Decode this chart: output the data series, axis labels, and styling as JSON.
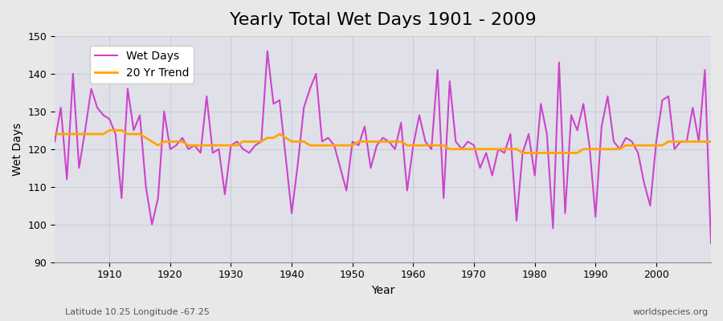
{
  "title": "Yearly Total Wet Days 1901 - 2009",
  "xlabel": "Year",
  "ylabel": "Wet Days",
  "subtitle": "Latitude 10.25 Longitude -67.25",
  "watermark": "worldspecies.org",
  "years": [
    1901,
    1902,
    1903,
    1904,
    1905,
    1906,
    1907,
    1908,
    1909,
    1910,
    1911,
    1912,
    1913,
    1914,
    1915,
    1916,
    1917,
    1918,
    1919,
    1920,
    1921,
    1922,
    1923,
    1924,
    1925,
    1926,
    1927,
    1928,
    1929,
    1930,
    1931,
    1932,
    1933,
    1934,
    1935,
    1936,
    1937,
    1938,
    1939,
    1940,
    1941,
    1942,
    1943,
    1944,
    1945,
    1946,
    1947,
    1948,
    1949,
    1950,
    1951,
    1952,
    1953,
    1954,
    1955,
    1956,
    1957,
    1958,
    1959,
    1960,
    1961,
    1962,
    1963,
    1964,
    1965,
    1966,
    1967,
    1968,
    1969,
    1970,
    1971,
    1972,
    1973,
    1974,
    1975,
    1976,
    1977,
    1978,
    1979,
    1980,
    1981,
    1982,
    1983,
    1984,
    1985,
    1986,
    1987,
    1988,
    1989,
    1990,
    1991,
    1992,
    1993,
    1994,
    1995,
    1996,
    1997,
    1998,
    1999,
    2000,
    2001,
    2002,
    2003,
    2004,
    2005,
    2006,
    2007,
    2008,
    2009
  ],
  "wet_days": [
    122,
    131,
    112,
    140,
    115,
    125,
    136,
    131,
    129,
    128,
    124,
    107,
    136,
    125,
    129,
    110,
    100,
    107,
    130,
    120,
    121,
    123,
    120,
    121,
    119,
    134,
    119,
    120,
    108,
    121,
    122,
    120,
    119,
    121,
    122,
    146,
    132,
    133,
    118,
    103,
    116,
    131,
    136,
    140,
    122,
    123,
    121,
    115,
    109,
    122,
    121,
    126,
    115,
    121,
    123,
    122,
    120,
    127,
    109,
    121,
    129,
    122,
    120,
    141,
    107,
    138,
    122,
    120,
    122,
    121,
    115,
    119,
    113,
    120,
    119,
    124,
    101,
    119,
    124,
    113,
    132,
    124,
    99,
    143,
    103,
    129,
    125,
    132,
    121,
    102,
    126,
    134,
    122,
    120,
    123,
    122,
    119,
    111,
    105,
    122,
    133,
    134,
    120,
    122,
    122,
    131,
    122,
    141,
    95
  ],
  "trend": [
    124,
    124,
    124,
    124,
    124,
    124,
    124,
    124,
    124,
    125,
    125,
    125,
    124,
    124,
    124,
    123,
    122,
    121,
    122,
    122,
    122,
    122,
    121,
    121,
    121,
    121,
    121,
    121,
    121,
    121,
    121,
    122,
    122,
    122,
    122,
    123,
    123,
    124,
    123,
    122,
    122,
    122,
    121,
    121,
    121,
    121,
    121,
    121,
    121,
    121,
    122,
    122,
    122,
    122,
    122,
    122,
    122,
    122,
    121,
    121,
    121,
    121,
    121,
    121,
    121,
    120,
    120,
    120,
    120,
    120,
    120,
    120,
    120,
    120,
    120,
    120,
    120,
    119,
    119,
    119,
    119,
    119,
    119,
    119,
    119,
    119,
    119,
    120,
    120,
    120,
    120,
    120,
    120,
    120,
    121,
    121,
    121,
    121,
    121,
    121,
    121,
    122,
    122,
    122,
    122,
    122,
    122,
    122,
    122
  ],
  "wet_days_color": "#CC44CC",
  "trend_color": "#FFA500",
  "bg_color": "#E8E8E8",
  "plot_bg_color": "#E0E0E8",
  "ylim": [
    90,
    150
  ],
  "xlim": [
    1901,
    2009
  ],
  "yticks": [
    90,
    100,
    110,
    120,
    130,
    140,
    150
  ],
  "xticks": [
    1910,
    1920,
    1930,
    1940,
    1950,
    1960,
    1970,
    1980,
    1990,
    2000
  ],
  "title_fontsize": 16,
  "label_fontsize": 10,
  "tick_fontsize": 9,
  "linewidth_wet": 1.5,
  "linewidth_trend": 2.0
}
